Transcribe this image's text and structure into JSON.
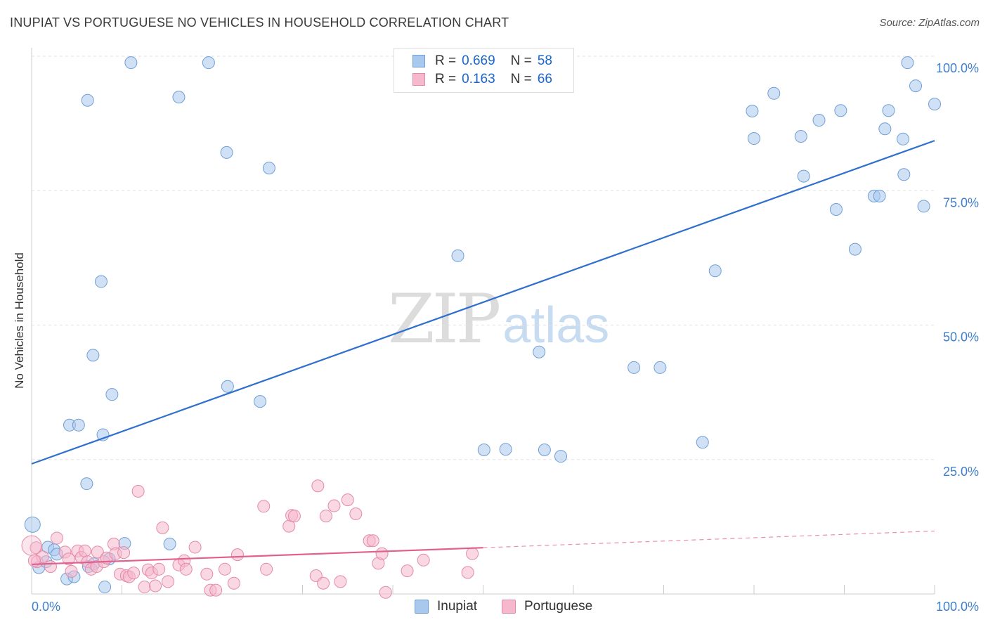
{
  "header": {
    "title": "INUPIAT VS PORTUGUESE NO VEHICLES IN HOUSEHOLD CORRELATION CHART",
    "source": "Source: ZipAtlas.com"
  },
  "watermark": {
    "zip": "ZIP",
    "atlas": "atlas"
  },
  "legend": {
    "rows": [
      {
        "r_label": "R =",
        "r_value": "0.669",
        "n_label": "N =",
        "n_value": "58",
        "color": "#a9c8ee"
      },
      {
        "r_label": "R =",
        "r_value": "0.163",
        "n_label": "N =",
        "n_value": "66",
        "color": "#f6b8cc"
      }
    ]
  },
  "bottom_legend": {
    "inupiat": "Inupiat",
    "portuguese": "Portuguese"
  },
  "colors": {
    "inupiat_fill": "#a9c8ee",
    "inupiat_stroke": "#6f9fd6",
    "inupiat_line": "#2f6fce",
    "portuguese_fill": "#f6b8cc",
    "portuguese_stroke": "#e48aa8",
    "portuguese_line": "#e0608e",
    "tick_label": "#3f7fd0",
    "grid": "#e2e2e2",
    "axis": "#cccccc"
  },
  "chart_data": {
    "type": "scatter",
    "title": "INUPIAT VS PORTUGUESE NO VEHICLES IN HOUSEHOLD CORRELATION CHART",
    "xlabel": "",
    "ylabel": "No Vehicles in Household",
    "xlim": [
      0,
      100
    ],
    "ylim": [
      0,
      100
    ],
    "x_tick_labels": [
      "0.0%",
      "100.0%"
    ],
    "y_ticks": [
      25,
      50,
      75,
      100
    ],
    "y_tick_labels": [
      "25.0%",
      "50.0%",
      "75.0%",
      "100.0%"
    ],
    "grid": true,
    "series": [
      {
        "name": "Inupiat",
        "r": 0.669,
        "n": 58,
        "trend": {
          "x": [
            0,
            100
          ],
          "y": [
            24.2,
            84.3
          ]
        },
        "points": [
          [
            0.1,
            12.9
          ],
          [
            0.8,
            4.9
          ],
          [
            1.8,
            8.7
          ],
          [
            1.6,
            6.0
          ],
          [
            2.5,
            8.2
          ],
          [
            2.8,
            7.4
          ],
          [
            3.9,
            2.8
          ],
          [
            4.7,
            3.2
          ],
          [
            6.3,
            5.1
          ],
          [
            8.1,
            1.3
          ],
          [
            8.6,
            6.5
          ],
          [
            10.3,
            9.4
          ],
          [
            6.9,
            5.6
          ],
          [
            4.2,
            31.4
          ],
          [
            5.2,
            31.4
          ],
          [
            7.9,
            29.6
          ],
          [
            6.1,
            20.5
          ],
          [
            8.9,
            37.1
          ],
          [
            6.8,
            44.4
          ],
          [
            7.7,
            58.1
          ],
          [
            6.2,
            91.8
          ],
          [
            11.0,
            98.8
          ],
          [
            16.3,
            92.4
          ],
          [
            19.6,
            98.8
          ],
          [
            21.6,
            82.1
          ],
          [
            26.3,
            79.2
          ],
          [
            15.3,
            9.3
          ],
          [
            21.7,
            38.6
          ],
          [
            25.3,
            35.8
          ],
          [
            47.2,
            62.9
          ],
          [
            50.1,
            26.8
          ],
          [
            52.5,
            26.9
          ],
          [
            56.2,
            45.0
          ],
          [
            56.8,
            26.8
          ],
          [
            58.6,
            25.6
          ],
          [
            66.7,
            42.1
          ],
          [
            69.6,
            42.1
          ],
          [
            74.3,
            28.2
          ],
          [
            75.7,
            60.1
          ],
          [
            79.8,
            89.8
          ],
          [
            80.0,
            84.7
          ],
          [
            82.2,
            93.1
          ],
          [
            85.2,
            85.1
          ],
          [
            85.5,
            77.7
          ],
          [
            87.2,
            88.1
          ],
          [
            89.1,
            71.5
          ],
          [
            89.6,
            89.9
          ],
          [
            91.2,
            64.1
          ],
          [
            93.3,
            74.0
          ],
          [
            93.9,
            74.0
          ],
          [
            94.5,
            86.5
          ],
          [
            94.9,
            89.9
          ],
          [
            96.5,
            84.6
          ],
          [
            96.6,
            78.0
          ],
          [
            97.0,
            98.8
          ],
          [
            97.9,
            94.5
          ],
          [
            98.8,
            72.1
          ],
          [
            100.0,
            91.1
          ]
        ]
      },
      {
        "name": "Portuguese",
        "r": 0.163,
        "n": 66,
        "trend": {
          "x": [
            0,
            50
          ],
          "y": [
            5.5,
            8.6
          ],
          "dashed_extension": {
            "x": [
              50,
              100
            ],
            "y": [
              8.6,
              11.7
            ]
          }
        },
        "points": [
          [
            0.5,
            8.6
          ],
          [
            0.6,
            6.0
          ],
          [
            1.2,
            6.9
          ],
          [
            2.1,
            5.1
          ],
          [
            2.8,
            10.4
          ],
          [
            3.7,
            7.8
          ],
          [
            4.1,
            6.5
          ],
          [
            4.4,
            4.2
          ],
          [
            5.1,
            8.0
          ],
          [
            5.5,
            6.8
          ],
          [
            5.9,
            8.0
          ],
          [
            6.2,
            6.0
          ],
          [
            6.6,
            4.6
          ],
          [
            7.2,
            5.1
          ],
          [
            7.3,
            7.8
          ],
          [
            8.0,
            6.0
          ],
          [
            8.3,
            6.7
          ],
          [
            9.1,
            9.3
          ],
          [
            9.3,
            7.5
          ],
          [
            9.8,
            3.7
          ],
          [
            10.2,
            7.7
          ],
          [
            10.5,
            3.4
          ],
          [
            10.8,
            3.2
          ],
          [
            11.3,
            3.9
          ],
          [
            11.8,
            19.1
          ],
          [
            12.5,
            1.3
          ],
          [
            12.9,
            4.5
          ],
          [
            13.3,
            3.9
          ],
          [
            13.7,
            1.5
          ],
          [
            14.1,
            4.6
          ],
          [
            14.5,
            12.3
          ],
          [
            15.1,
            2.3
          ],
          [
            16.3,
            5.4
          ],
          [
            16.9,
            6.2
          ],
          [
            17.1,
            4.6
          ],
          [
            18.1,
            8.7
          ],
          [
            19.4,
            3.7
          ],
          [
            19.8,
            0.7
          ],
          [
            20.4,
            0.7
          ],
          [
            21.4,
            4.6
          ],
          [
            22.4,
            2.0
          ],
          [
            22.8,
            7.3
          ],
          [
            25.7,
            16.3
          ],
          [
            26.0,
            4.6
          ],
          [
            28.5,
            12.6
          ],
          [
            28.8,
            14.6
          ],
          [
            29.1,
            14.5
          ],
          [
            31.5,
            3.4
          ],
          [
            31.7,
            20.1
          ],
          [
            32.3,
            2.0
          ],
          [
            32.6,
            14.5
          ],
          [
            33.5,
            16.4
          ],
          [
            34.2,
            2.3
          ],
          [
            35.0,
            17.5
          ],
          [
            35.9,
            14.9
          ],
          [
            37.4,
            9.9
          ],
          [
            37.8,
            9.9
          ],
          [
            38.4,
            5.7
          ],
          [
            38.8,
            7.5
          ],
          [
            39.2,
            0.3
          ],
          [
            41.6,
            4.3
          ],
          [
            43.4,
            6.3
          ],
          [
            48.3,
            4.0
          ],
          [
            48.8,
            7.5
          ],
          [
            0.0,
            9.0
          ],
          [
            0.3,
            6.2
          ]
        ]
      }
    ]
  }
}
